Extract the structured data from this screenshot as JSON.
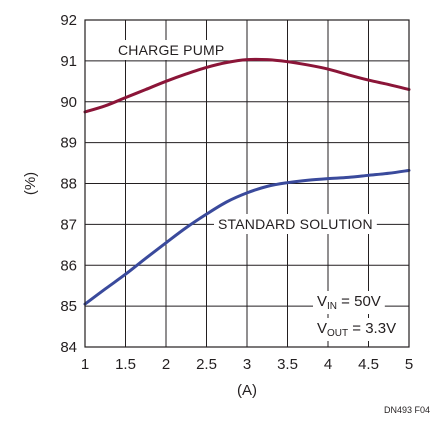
{
  "chart_data": {
    "type": "line",
    "xlabel": "(A)",
    "ylabel": "(%)",
    "xlim": [
      1,
      5
    ],
    "ylim": [
      84,
      92
    ],
    "x_ticks": [
      1,
      1.5,
      2,
      2.5,
      3,
      3.5,
      4,
      4.5,
      5
    ],
    "x_tick_labels": [
      "1",
      "1.5",
      "2",
      "2.5",
      "3",
      "3.5",
      "4",
      "4.5",
      "5"
    ],
    "y_ticks": [
      84,
      85,
      86,
      87,
      88,
      89,
      90,
      91,
      92
    ],
    "y_tick_labels": [
      "84",
      "85",
      "86",
      "87",
      "88",
      "89",
      "90",
      "91",
      "92"
    ],
    "grid": true,
    "series": [
      {
        "name": "CHARGE PUMP",
        "color": "#8b1538",
        "x": [
          1,
          1.25,
          1.5,
          1.75,
          2,
          2.25,
          2.5,
          2.75,
          3,
          3.25,
          3.5,
          3.75,
          4,
          4.25,
          4.5,
          4.75,
          5
        ],
        "y": [
          89.75,
          89.9,
          90.1,
          90.3,
          90.5,
          90.68,
          90.84,
          90.96,
          91.03,
          91.03,
          90.98,
          90.9,
          90.8,
          90.66,
          90.53,
          90.42,
          90.3
        ]
      },
      {
        "name": "STANDARD SOLUTION",
        "color": "#3a4a9c",
        "x": [
          1,
          1.25,
          1.5,
          1.75,
          2,
          2.25,
          2.5,
          2.75,
          3,
          3.25,
          3.5,
          3.75,
          4,
          4.25,
          4.5,
          4.75,
          5
        ],
        "y": [
          85.05,
          85.42,
          85.78,
          86.17,
          86.55,
          86.92,
          87.25,
          87.55,
          87.77,
          87.93,
          88.02,
          88.08,
          88.12,
          88.15,
          88.2,
          88.25,
          88.32
        ]
      }
    ],
    "annotations": {
      "vin_main": "V",
      "vin_sub": "IN",
      "vin_value": " = 50V",
      "vout_main": "V",
      "vout_sub": "OUT",
      "vout_value": " = 3.3V"
    },
    "figure_id": "DN493 F04"
  }
}
